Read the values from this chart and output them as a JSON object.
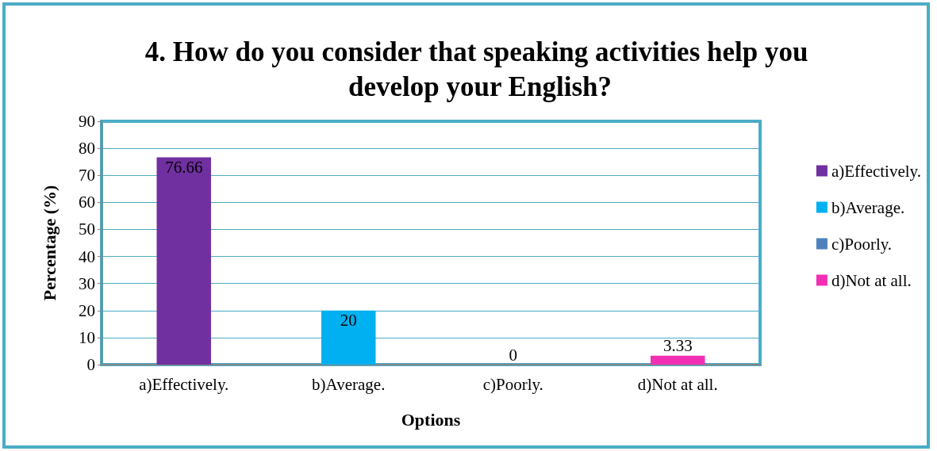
{
  "chart_data": {
    "type": "bar",
    "title": "4. How do you consider that speaking activities help you develop your English?",
    "xlabel": "Options",
    "ylabel": "Percentage (%)",
    "categories": [
      "a)Effectively.",
      "b)Average.",
      "c)Poorly.",
      "d)Not at all."
    ],
    "series": [
      {
        "name": "a)Effectively.",
        "color": "#7030a0",
        "values": [
          76.66,
          null,
          null,
          null
        ]
      },
      {
        "name": "b)Average.",
        "color": "#00b0f0",
        "values": [
          null,
          20,
          null,
          null
        ]
      },
      {
        "name": "c)Poorly.",
        "color": "#4f81bd",
        "values": [
          null,
          null,
          0,
          null
        ]
      },
      {
        "name": "d)Not at all.",
        "color": "#f22fb4",
        "values": [
          null,
          null,
          null,
          3.33
        ]
      }
    ],
    "ylim": [
      0,
      90
    ],
    "yticks": [
      0,
      10,
      20,
      30,
      40,
      50,
      60,
      70,
      80,
      90
    ],
    "grid": "y",
    "legend": "right",
    "data_labels": true
  }
}
